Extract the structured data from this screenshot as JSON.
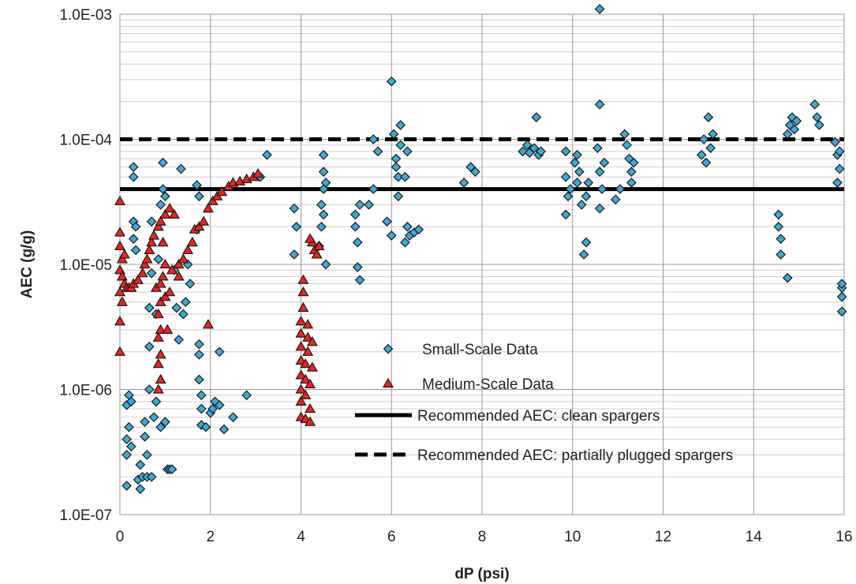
{
  "chart_data": {
    "type": "scatter",
    "xlabel": "dP (psi)",
    "ylabel": "AEC (g/g)",
    "xlim": [
      0,
      16
    ],
    "ylim": [
      1e-07,
      0.001
    ],
    "yscale": "log",
    "grid": true,
    "legend_position": "bottom-center",
    "x_ticks": [
      "0",
      "2",
      "4",
      "6",
      "8",
      "10",
      "12",
      "14",
      "16"
    ],
    "y_ticks": [
      "1.0E-07",
      "1.0E-06",
      "1.0E-05",
      "1.0E-04",
      "1.0E-03"
    ],
    "series": [
      {
        "name": "Small-Scale Data",
        "marker": "diamond",
        "color": "#3fa9d6",
        "points": [
          [
            0.15,
            1.7e-07
          ],
          [
            0.15,
            3e-07
          ],
          [
            0.15,
            4e-07
          ],
          [
            0.15,
            7.5e-07
          ],
          [
            0.2,
            9e-07
          ],
          [
            0.2,
            5e-07
          ],
          [
            0.25,
            3.5e-07
          ],
          [
            0.25,
            8e-07
          ],
          [
            0.3,
            6e-05
          ],
          [
            0.3,
            5e-05
          ],
          [
            0.3,
            2.2e-05
          ],
          [
            0.3,
            1.6e-05
          ],
          [
            0.35,
            1.3e-05
          ],
          [
            0.35,
            2e-05
          ],
          [
            0.4,
            1.9e-07
          ],
          [
            0.45,
            2.5e-07
          ],
          [
            0.45,
            1.6e-07
          ],
          [
            0.5,
            2e-07
          ],
          [
            0.55,
            5.5e-07
          ],
          [
            0.55,
            4.2e-07
          ],
          [
            0.6,
            3e-07
          ],
          [
            0.6,
            2e-07
          ],
          [
            0.65,
            1e-06
          ],
          [
            0.65,
            2.2e-06
          ],
          [
            0.65,
            4.5e-06
          ],
          [
            0.7,
            8.5e-06
          ],
          [
            0.7,
            2.2e-05
          ],
          [
            0.7,
            2e-07
          ],
          [
            0.75,
            6e-07
          ],
          [
            0.8,
            8e-07
          ],
          [
            0.8,
            4e-06
          ],
          [
            0.85,
            1.1e-05
          ],
          [
            0.9,
            3e-05
          ],
          [
            0.9,
            5e-07
          ],
          [
            0.95,
            4e-05
          ],
          [
            0.95,
            6.5e-05
          ],
          [
            1.0,
            3.5e-05
          ],
          [
            1.0,
            5.5e-07
          ],
          [
            1.05,
            2.3e-07
          ],
          [
            1.1,
            2.3e-07
          ],
          [
            1.15,
            2.3e-07
          ],
          [
            1.2,
            9e-06
          ],
          [
            1.25,
            4.5e-06
          ],
          [
            1.3,
            2.5e-06
          ],
          [
            1.35,
            5.8e-05
          ],
          [
            1.4,
            4e-06
          ],
          [
            1.45,
            5e-06
          ],
          [
            1.5,
            1e-05
          ],
          [
            1.55,
            7e-06
          ],
          [
            1.7,
            4.3e-05
          ],
          [
            1.75,
            3.5e-05
          ],
          [
            1.7,
            1.9e-05
          ],
          [
            1.75,
            2.3e-06
          ],
          [
            1.75,
            1.9e-06
          ],
          [
            1.75,
            1.2e-06
          ],
          [
            1.8,
            9e-07
          ],
          [
            1.8,
            7e-07
          ],
          [
            1.8,
            5.2e-07
          ],
          [
            1.9,
            5e-07
          ],
          [
            2.0,
            6.5e-07
          ],
          [
            2.05,
            7e-07
          ],
          [
            2.1,
            8e-07
          ],
          [
            2.2,
            2e-06
          ],
          [
            2.2,
            7.5e-07
          ],
          [
            2.3,
            4.8e-07
          ],
          [
            2.5,
            6e-07
          ],
          [
            2.8,
            9e-07
          ],
          [
            3.1,
            5e-05
          ],
          [
            3.25,
            7.5e-05
          ],
          [
            3.85,
            1.2e-05
          ],
          [
            3.85,
            2.8e-05
          ],
          [
            3.9,
            2e-05
          ],
          [
            4.4,
            1.4e-05
          ],
          [
            4.45,
            2e-05
          ],
          [
            4.45,
            3e-05
          ],
          [
            4.5,
            4e-05
          ],
          [
            4.5,
            5.5e-05
          ],
          [
            4.5,
            7.5e-05
          ],
          [
            4.55,
            1e-05
          ],
          [
            4.5,
            2.5e-05
          ],
          [
            4.55,
            4.5e-05
          ],
          [
            5.2,
            2.5e-05
          ],
          [
            5.2,
            2e-05
          ],
          [
            5.25,
            1.5e-05
          ],
          [
            5.25,
            9.5e-06
          ],
          [
            5.3,
            7.5e-06
          ],
          [
            5.3,
            3e-05
          ],
          [
            5.5,
            3e-05
          ],
          [
            5.6,
            4e-05
          ],
          [
            5.6,
            0.0001
          ],
          [
            5.7,
            8e-05
          ],
          [
            5.9,
            2.2e-05
          ],
          [
            6.0,
            0.00029
          ],
          [
            6.0,
            1.7e-05
          ],
          [
            6.05,
            0.00011
          ],
          [
            6.1,
            7e-05
          ],
          [
            6.1,
            6e-05
          ],
          [
            6.15,
            5e-05
          ],
          [
            6.15,
            3.5e-05
          ],
          [
            6.2,
            0.00013
          ],
          [
            6.2,
            9e-05
          ],
          [
            6.3,
            1.5e-05
          ],
          [
            6.35,
            2e-05
          ],
          [
            6.4,
            1.7e-05
          ],
          [
            6.5,
            1.8e-05
          ],
          [
            6.6,
            1.9e-05
          ],
          [
            6.35,
            8e-05
          ],
          [
            6.3,
            5e-05
          ],
          [
            7.6,
            4.5e-05
          ],
          [
            7.75,
            6e-05
          ],
          [
            7.85,
            5.5e-05
          ],
          [
            8.9,
            8e-05
          ],
          [
            9.0,
            9e-05
          ],
          [
            9.05,
            7.8e-05
          ],
          [
            9.15,
            8.5e-05
          ],
          [
            9.2,
            0.00015
          ],
          [
            9.25,
            7.5e-05
          ],
          [
            9.3,
            8e-05
          ],
          [
            9.85,
            2.5e-05
          ],
          [
            9.85,
            8e-05
          ],
          [
            9.85,
            5e-05
          ],
          [
            9.9,
            3.5e-05
          ],
          [
            9.95,
            4e-05
          ],
          [
            10.05,
            6.5e-05
          ],
          [
            10.1,
            4.5e-05
          ],
          [
            10.1,
            7.5e-05
          ],
          [
            10.15,
            5.5e-05
          ],
          [
            10.2,
            3e-05
          ],
          [
            10.25,
            1.2e-05
          ],
          [
            10.3,
            1.5e-05
          ],
          [
            10.3,
            3.5e-05
          ],
          [
            10.35,
            4.5e-05
          ],
          [
            10.55,
            8.5e-05
          ],
          [
            10.6,
            0.0011
          ],
          [
            10.6,
            0.00019
          ],
          [
            10.6,
            5.5e-05
          ],
          [
            10.6,
            2.8e-05
          ],
          [
            10.65,
            4e-05
          ],
          [
            10.7,
            6.5e-05
          ],
          [
            10.95,
            3.3e-05
          ],
          [
            11.05,
            4e-05
          ],
          [
            11.15,
            0.00011
          ],
          [
            11.2,
            9e-05
          ],
          [
            11.25,
            7e-05
          ],
          [
            11.3,
            5.5e-05
          ],
          [
            11.35,
            6.5e-05
          ],
          [
            11.3,
            4.5e-05
          ],
          [
            12.85,
            7.5e-05
          ],
          [
            12.9,
            0.0001
          ],
          [
            12.95,
            6.5e-05
          ],
          [
            13.0,
            0.00015
          ],
          [
            13.05,
            8.5e-05
          ],
          [
            13.1,
            0.00011
          ],
          [
            14.55,
            2.5e-05
          ],
          [
            14.55,
            2e-05
          ],
          [
            14.6,
            1.2e-05
          ],
          [
            14.6,
            1.6e-05
          ],
          [
            14.75,
            7.8e-06
          ],
          [
            14.75,
            0.00011
          ],
          [
            14.8,
            0.00013
          ],
          [
            14.85,
            0.00015
          ],
          [
            14.9,
            0.00012
          ],
          [
            14.95,
            0.00014
          ],
          [
            15.35,
            0.00019
          ],
          [
            15.4,
            0.00015
          ],
          [
            15.45,
            0.00013
          ],
          [
            15.8,
            9.5e-05
          ],
          [
            15.85,
            7.5e-05
          ],
          [
            15.85,
            4.5e-05
          ],
          [
            15.9,
            8e-05
          ],
          [
            15.9,
            5.8e-05
          ],
          [
            15.95,
            6.5e-06
          ],
          [
            15.95,
            4.2e-06
          ],
          [
            15.95,
            5.5e-06
          ],
          [
            15.95,
            7e-06
          ]
        ]
      },
      {
        "name": "Medium-Scale Data",
        "marker": "triangle",
        "color": "#e8251f",
        "points": [
          [
            0.0,
            3.2e-05
          ],
          [
            0.0,
            1.8e-05
          ],
          [
            0.0,
            1.4e-05
          ],
          [
            0.0,
            9e-06
          ],
          [
            0.0,
            6e-06
          ],
          [
            0.0,
            3.5e-06
          ],
          [
            0.0,
            2e-06
          ],
          [
            0.05,
            1.1e-05
          ],
          [
            0.05,
            8e-06
          ],
          [
            0.05,
            5e-06
          ],
          [
            0.1,
            7e-06
          ],
          [
            0.1,
            1.2e-05
          ],
          [
            0.15,
            6.5e-06
          ],
          [
            0.2,
            6.5e-06
          ],
          [
            0.25,
            6.5e-06
          ],
          [
            0.3,
            7e-06
          ],
          [
            0.4,
            7.5e-06
          ],
          [
            0.5,
            8.5e-06
          ],
          [
            0.55,
            1e-05
          ],
          [
            0.6,
            1.1e-05
          ],
          [
            0.65,
            1.3e-05
          ],
          [
            0.7,
            1.5e-05
          ],
          [
            0.75,
            1.7e-05
          ],
          [
            0.85,
            2e-05
          ],
          [
            0.9,
            2.2e-05
          ],
          [
            1.0,
            2.5e-05
          ],
          [
            1.1,
            2.8e-05
          ],
          [
            1.2,
            2.5e-05
          ],
          [
            0.8,
            6.5e-06
          ],
          [
            0.85,
            1e-06
          ],
          [
            0.85,
            1.6e-06
          ],
          [
            0.85,
            2.6e-06
          ],
          [
            0.85,
            4e-06
          ],
          [
            0.9,
            7e-06
          ],
          [
            0.9,
            1.2e-06
          ],
          [
            0.9,
            1.9e-06
          ],
          [
            0.9,
            3e-06
          ],
          [
            0.9,
            5e-06
          ],
          [
            0.95,
            8e-06
          ],
          [
            0.95,
            1.5e-05
          ],
          [
            1.0,
            1e-05
          ],
          [
            1.0,
            5.5e-06
          ],
          [
            1.05,
            3e-06
          ],
          [
            1.1,
            6e-06
          ],
          [
            1.15,
            9e-06
          ],
          [
            1.3,
            1e-05
          ],
          [
            1.4,
            1.1e-05
          ],
          [
            1.5,
            1.3e-05
          ],
          [
            1.6,
            1.5e-05
          ],
          [
            1.65,
            1.9e-05
          ],
          [
            1.75,
            2e-05
          ],
          [
            1.85,
            2.2e-05
          ],
          [
            1.95,
            2.8e-05
          ],
          [
            2.05,
            3.2e-05
          ],
          [
            2.15,
            3.5e-05
          ],
          [
            2.25,
            3.8e-05
          ],
          [
            2.4,
            4.2e-05
          ],
          [
            2.5,
            4.5e-05
          ],
          [
            2.65,
            4.6e-05
          ],
          [
            2.8,
            4.8e-05
          ],
          [
            2.95,
            5e-05
          ],
          [
            3.05,
            5.3e-05
          ],
          [
            1.95,
            3.3e-06
          ],
          [
            1.3,
            8e-06
          ],
          [
            4.0,
            6e-07
          ],
          [
            4.0,
            8e-07
          ],
          [
            4.0,
            1e-06
          ],
          [
            4.0,
            1.3e-06
          ],
          [
            4.0,
            1.7e-06
          ],
          [
            4.0,
            2.2e-06
          ],
          [
            4.0,
            2.8e-06
          ],
          [
            4.0,
            3.5e-06
          ],
          [
            4.05,
            4.5e-06
          ],
          [
            4.05,
            6e-06
          ],
          [
            4.05,
            7.5e-06
          ],
          [
            4.1,
            5.8e-07
          ],
          [
            4.1,
            9e-07
          ],
          [
            4.1,
            1.2e-06
          ],
          [
            4.1,
            1.6e-06
          ],
          [
            4.15,
            2e-06
          ],
          [
            4.15,
            2.6e-06
          ],
          [
            4.15,
            3.3e-06
          ],
          [
            4.2,
            5.5e-07
          ],
          [
            4.2,
            7e-07
          ],
          [
            4.2,
            1.1e-06
          ],
          [
            4.25,
            1.5e-06
          ],
          [
            4.25,
            2.4e-06
          ],
          [
            4.3,
            1.3e-05
          ],
          [
            4.25,
            1.5e-05
          ],
          [
            4.35,
            1.2e-05
          ],
          [
            4.4,
            1.4e-05
          ],
          [
            4.2,
            1.6e-05
          ]
        ]
      },
      {
        "name": "Recommended AEC: clean spargers",
        "line_style": "solid",
        "color": "#000000",
        "x": [
          0,
          16
        ],
        "y": [
          4e-05,
          4e-05
        ]
      },
      {
        "name": "Recommended AEC: partially plugged spargers",
        "line_style": "dashed",
        "color": "#000000",
        "x": [
          0,
          16
        ],
        "y": [
          0.0001,
          0.0001
        ]
      }
    ]
  }
}
